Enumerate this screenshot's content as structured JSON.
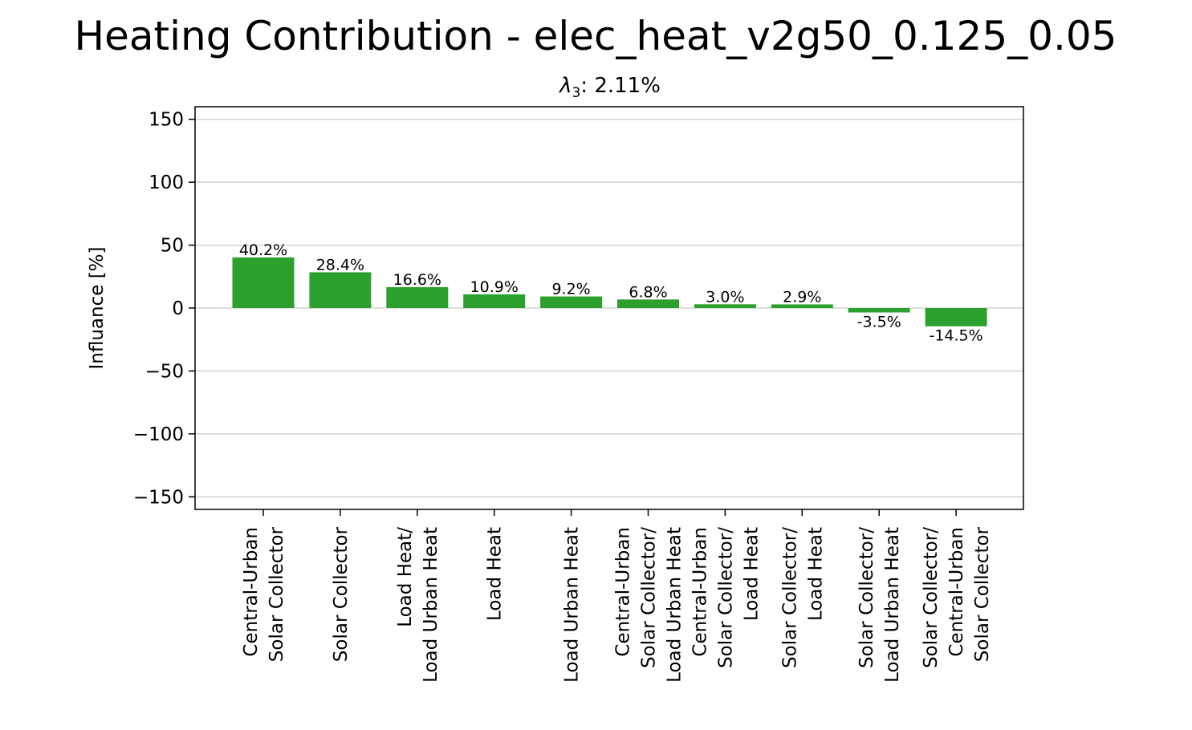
{
  "chart_data": {
    "type": "bar",
    "title": "Heating Contribution - elec_heat_v2g50_0.125_0.05",
    "subtitle": {
      "symbol": "λ",
      "subscript": "3",
      "text": ": 2.11%"
    },
    "xlabel": "",
    "ylabel": "Influance [%]",
    "ylim": [
      -160,
      160
    ],
    "yticks": [
      150,
      100,
      50,
      0,
      -50,
      -100,
      -150
    ],
    "ytick_labels": [
      "150",
      "100",
      "50",
      "0",
      "−50",
      "−100",
      "−150"
    ],
    "grid": "horizontal",
    "bar_color": "#2ca02c",
    "categories": [
      [
        "Central-Urban",
        "Solar Collector"
      ],
      [
        "Solar Collector"
      ],
      [
        "Load Heat/",
        "Load Urban Heat"
      ],
      [
        "Load Heat"
      ],
      [
        "Load Urban Heat"
      ],
      [
        "Central-Urban",
        "Solar Collector/",
        "Load Urban Heat"
      ],
      [
        "Central-Urban",
        "Solar Collector/",
        "Load Heat"
      ],
      [
        "Solar Collector/",
        "Load Heat"
      ],
      [
        "Solar Collector/",
        "Load Urban Heat"
      ],
      [
        "Solar Collector/",
        "Central-Urban",
        "Solar Collector"
      ]
    ],
    "values": [
      40.2,
      28.4,
      16.6,
      10.9,
      9.2,
      6.8,
      3.0,
      2.9,
      -3.5,
      -14.5
    ],
    "value_labels": [
      "40.2%",
      "28.4%",
      "16.6%",
      "10.9%",
      "9.2%",
      "6.8%",
      "3.0%",
      "2.9%",
      "-3.5%",
      "-14.5%"
    ]
  }
}
